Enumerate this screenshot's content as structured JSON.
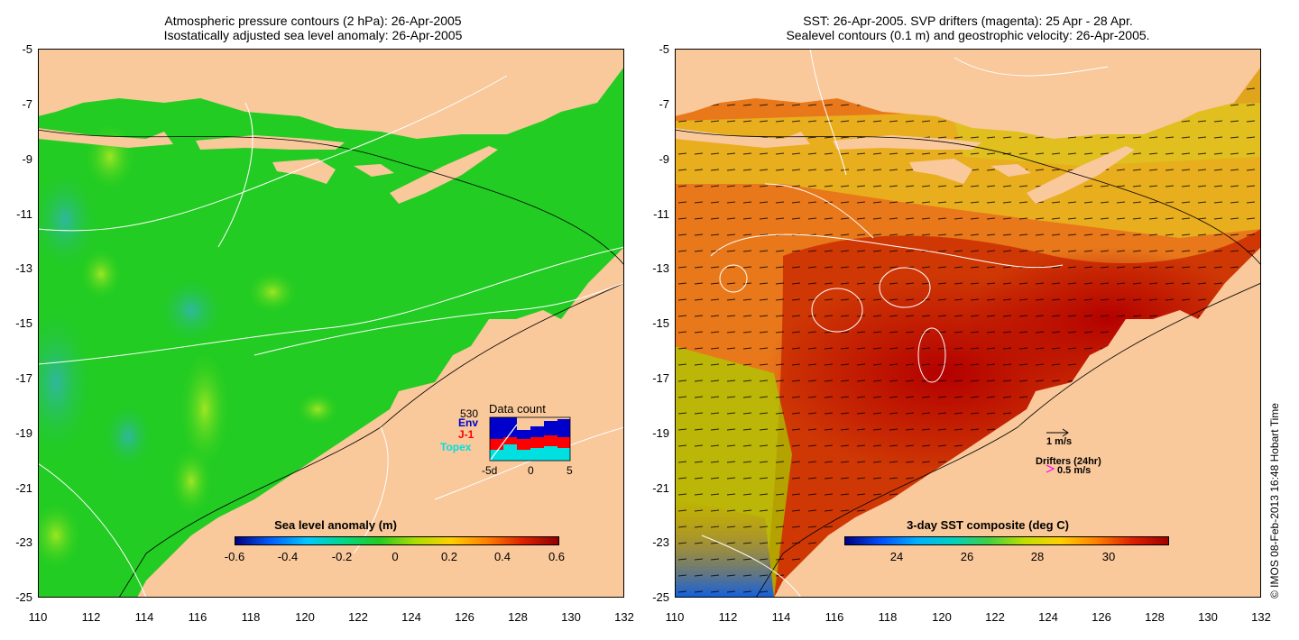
{
  "left_panel": {
    "title_line1": "Atmospheric pressure contours (2 hPa): 26-Apr-2005",
    "title_line2": "Isostatically adjusted sea level anomaly: 26-Apr-2005",
    "colorbar_title": "Sea level anomaly (m)",
    "colorbar_ticks": [
      "-0.6",
      "-0.4",
      "-0.2",
      "0",
      "0.2",
      "0.4",
      "0.6"
    ],
    "data_count": {
      "title": "Data count",
      "max_label": "530",
      "missions": [
        {
          "name": "Env",
          "color": "#0000cc"
        },
        {
          "name": "J-1",
          "color": "#ff0000"
        },
        {
          "name": "Topex",
          "color": "#00e0e0"
        }
      ],
      "x_ticks": [
        "-5d",
        "0",
        "5"
      ]
    }
  },
  "right_panel": {
    "title_line1": "SST: 26-Apr-2005. SVP drifters (magenta): 25 Apr - 28 Apr.",
    "title_line2": "Sealevel contours (0.1 m) and geostrophic velocity: 26-Apr-2005.",
    "colorbar_title": "3-day SST composite (deg C)",
    "colorbar_ticks": [
      "24",
      "26",
      "28",
      "30"
    ],
    "velocity_scale": "1 m/s",
    "drifter_label": "Drifters (24hr)",
    "drifter_scale": "0.5 m/s",
    "drifter_color": "#ff00ff"
  },
  "axes": {
    "y_ticks": [
      "-5",
      "-7",
      "-9",
      "-11",
      "-13",
      "-15",
      "-17",
      "-19",
      "-21",
      "-23",
      "-25"
    ],
    "x_ticks": [
      "110",
      "112",
      "114",
      "116",
      "118",
      "120",
      "122",
      "124",
      "126",
      "128",
      "130",
      "132"
    ]
  },
  "colors": {
    "land": "#f9c89b",
    "ocean_sla": "#22cc22",
    "warm_sst": "#b40000"
  },
  "credit": "© IMOS 08-Feb-2013 16:48 Hobart Time"
}
